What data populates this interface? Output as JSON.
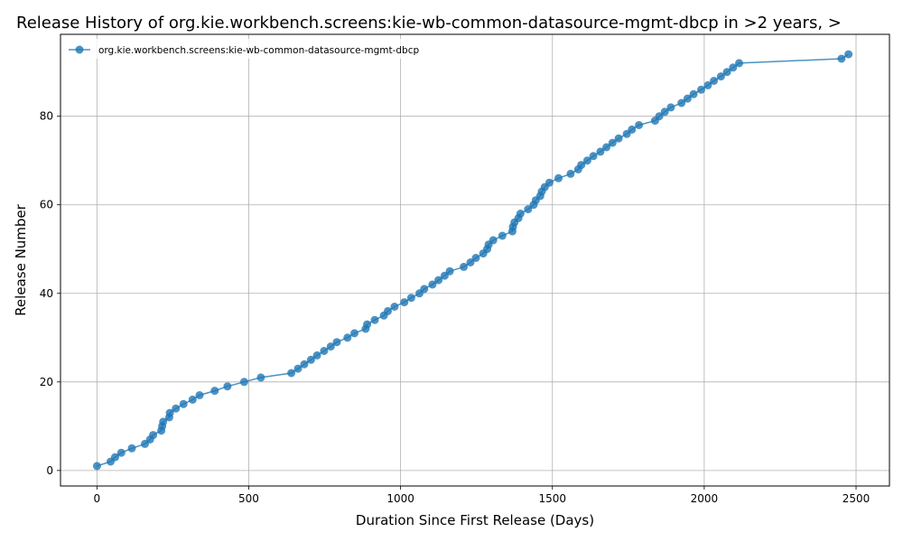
{
  "chart_data": {
    "type": "line",
    "title": "Release History of org.kie.workbench.screens:kie-wb-common-datasource-mgmt-dbcp in >2 years, >",
    "xlabel": "Duration Since First Release (Days)",
    "ylabel": "Release Number",
    "xlim": [
      -120,
      2610
    ],
    "ylim": [
      -3.5,
      98.5
    ],
    "xticks": [
      0,
      500,
      1000,
      1500,
      2000,
      2500
    ],
    "yticks": [
      0,
      20,
      40,
      60,
      80
    ],
    "grid": true,
    "legend_position": "top-left",
    "color": "#1f77b4",
    "series": [
      {
        "name": "org.kie.workbench.screens:kie-wb-common-datasource-mgmt-dbcp",
        "x": [
          0,
          45,
          60,
          80,
          115,
          158,
          175,
          185,
          212,
          215,
          218,
          238,
          240,
          260,
          285,
          315,
          338,
          388,
          430,
          485,
          540,
          640,
          662,
          683,
          705,
          725,
          748,
          770,
          790,
          825,
          848,
          885,
          890,
          915,
          945,
          958,
          980,
          1012,
          1035,
          1062,
          1078,
          1105,
          1125,
          1145,
          1162,
          1208,
          1230,
          1248,
          1272,
          1285,
          1290,
          1305,
          1335,
          1368,
          1370,
          1375,
          1388,
          1395,
          1420,
          1438,
          1445,
          1460,
          1465,
          1475,
          1490,
          1520,
          1560,
          1585,
          1595,
          1615,
          1635,
          1658,
          1678,
          1698,
          1718,
          1745,
          1762,
          1785,
          1838,
          1852,
          1870,
          1890,
          1925,
          1945,
          1965,
          1990,
          2012,
          2032,
          2055,
          2075,
          2095,
          2115,
          2452,
          2475
        ],
        "y": [
          1,
          2,
          3,
          4,
          5,
          6,
          7,
          8,
          9,
          10,
          11,
          12,
          13,
          14,
          15,
          16,
          17,
          18,
          19,
          20,
          21,
          22,
          23,
          24,
          25,
          26,
          27,
          28,
          29,
          30,
          31,
          32,
          33,
          34,
          35,
          36,
          37,
          38,
          39,
          40,
          41,
          42,
          43,
          44,
          45,
          46,
          47,
          48,
          49,
          50,
          51,
          52,
          53,
          54,
          55,
          56,
          57,
          58,
          59,
          60,
          61,
          62,
          63,
          64,
          65,
          66,
          67,
          68,
          69,
          70,
          71,
          72,
          73,
          74,
          75,
          76,
          77,
          78,
          79,
          80,
          81,
          82,
          83,
          84,
          85,
          86,
          87,
          88,
          89,
          90,
          91,
          92,
          93,
          94
        ]
      }
    ]
  }
}
